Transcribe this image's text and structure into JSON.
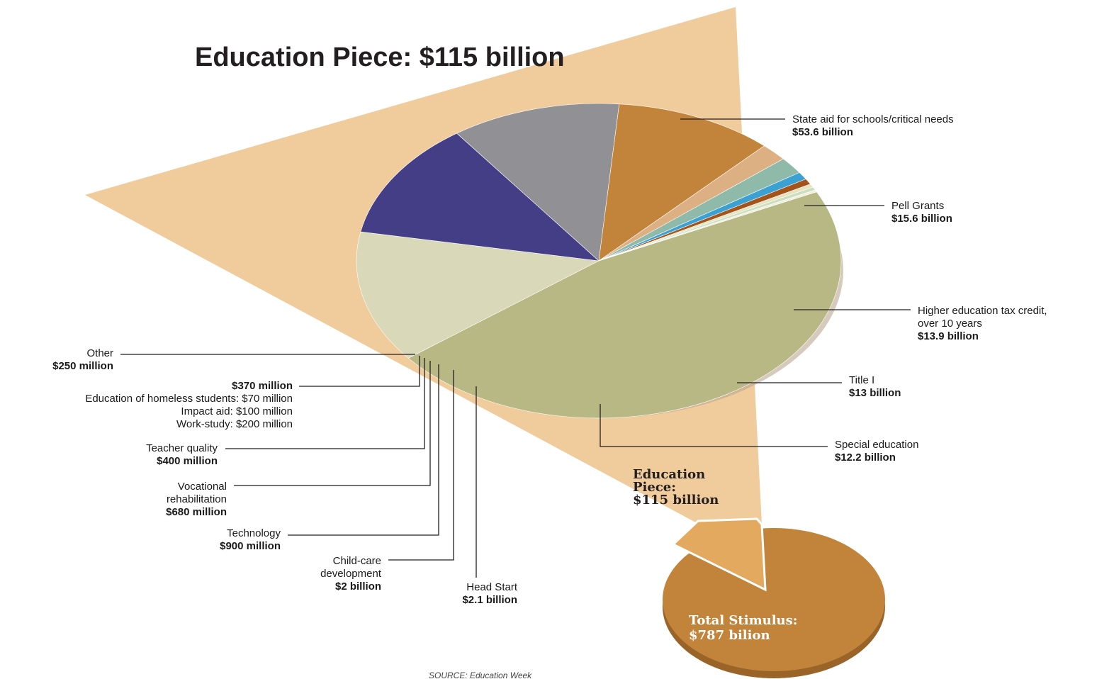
{
  "chart_data": {
    "type": "pie",
    "title": "Education Piece: $115 billion",
    "total": 115,
    "unit": "billion",
    "slices": [
      {
        "name": "State aid for schools/critical needs",
        "value_label": "$53.6 billion",
        "value": 53.6,
        "color": "#b8b885"
      },
      {
        "name": "Pell Grants",
        "value_label": "$15.6 billion",
        "value": 15.6,
        "color": "#d9d8b8"
      },
      {
        "name": "Higher education tax credit, over 10 years",
        "name_lines": [
          "Higher education tax credit,",
          "over 10 years"
        ],
        "value_label": "$13.9 billion",
        "value": 13.9,
        "color": "#433e85"
      },
      {
        "name": "Title I",
        "value_label": "$13 billion",
        "value": 13,
        "color": "#919195"
      },
      {
        "name": "Special education",
        "value_label": "$12.2 billion",
        "value": 12.2,
        "color": "#c2843a"
      },
      {
        "name": "Head Start",
        "value_label": "$2.1 billion",
        "value": 2.1,
        "color": "#ddb083"
      },
      {
        "name": "Child-care development",
        "name_lines": [
          "Child-care",
          "development"
        ],
        "value_label": "$2 billion",
        "value": 2,
        "color": "#8fb9a8"
      },
      {
        "name": "Technology",
        "value_label": "$900 million",
        "value": 0.9,
        "color": "#3ba0d2"
      },
      {
        "name": "Vocational rehabilitation",
        "name_lines": [
          "Vocational",
          "rehabilitation"
        ],
        "value_label": "$680 million",
        "value": 0.68,
        "color": "#a4531a"
      },
      {
        "name": "Teacher quality",
        "value_label": "$400 million",
        "value": 0.4,
        "color": "#e8e2bf"
      },
      {
        "name": "$370 million",
        "name_lines": [],
        "value_label": "$370 million",
        "sub_items": [
          "Education of homeless students: $70 million",
          "Impact aid: $100 million",
          "Work-study: $200 million"
        ],
        "value": 0.37,
        "color": "#c9dfc0"
      },
      {
        "name": "Other",
        "value_label": "$250 million",
        "value": 0.25,
        "color": "#f1efdc"
      }
    ],
    "total_pie": {
      "label_lines": [
        "Total Stimulus:",
        "$787 bilion"
      ],
      "inset_label_lines": [
        "Education",
        "Piece:",
        "$115 billion"
      ],
      "total_value": 787,
      "education_value": 115,
      "color": "#c2843a",
      "highlight_color": "#e3a95e"
    },
    "source": "SOURCE: Education Week",
    "background_wedge_color": "#f0cb9b"
  }
}
